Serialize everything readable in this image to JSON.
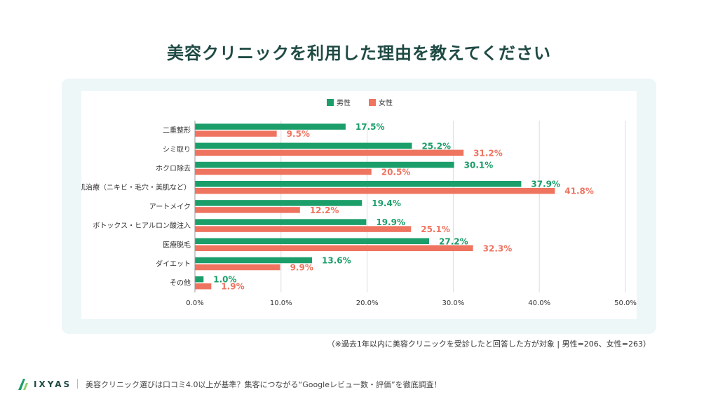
{
  "page": {
    "title": "美容クリニックを利用した理由を教えてください",
    "note": "（※過去1年以内に美容クリニックを受診したと回答した方が対象 | 男性=206、女性=263）",
    "footer": {
      "logo_text": "IXYAS",
      "caption": "美容クリニック選びは口コミ4.0以上が基準？集客につながる“Googleレビュー数・評価”を徹底調査！"
    }
  },
  "colors": {
    "male": "#1b9e6a",
    "female": "#ef7460",
    "grid": "#dddddd",
    "axis_text": "#333333"
  },
  "chart_data": {
    "type": "bar",
    "orientation": "horizontal",
    "legend_position": "top",
    "grid": true,
    "categories": [
      "二重整形",
      "シミ取り",
      "ホクロ除去",
      "肌治療（ニキビ・毛穴・美肌など）",
      "アートメイク",
      "ボトックス・ヒアルロン酸注入",
      "医療脱毛",
      "ダイエット",
      "その他"
    ],
    "series": [
      {
        "name": "男性",
        "values": [
          17.5,
          25.2,
          30.1,
          37.9,
          19.4,
          19.9,
          27.2,
          13.6,
          1.0
        ]
      },
      {
        "name": "女性",
        "values": [
          9.5,
          31.2,
          20.5,
          41.8,
          12.2,
          25.1,
          32.3,
          9.9,
          1.9
        ]
      }
    ],
    "xlim": [
      0,
      50
    ],
    "xticks": [
      "0.0%",
      "10.0%",
      "20.0%",
      "30.0%",
      "40.0%",
      "50.0%"
    ],
    "value_suffix": "%"
  }
}
